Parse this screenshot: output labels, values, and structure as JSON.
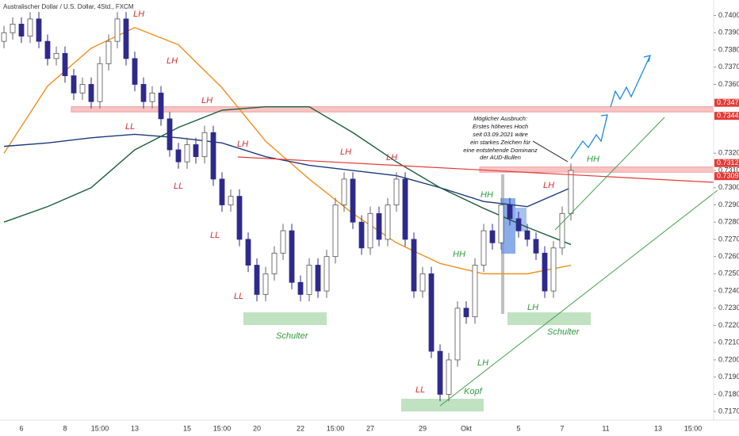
{
  "chart_data": {
    "type": "candlestick",
    "title": "Australischer Dollar / U.S. Dollar, 4Std., FXCM",
    "categories": [
      null,
      null,
      "6",
      null,
      null,
      null,
      null,
      "8",
      null,
      null,
      null,
      "15:00",
      null,
      null,
      null,
      "13",
      null,
      null,
      null,
      null,
      null,
      "15",
      null,
      null,
      null,
      "15:00",
      null,
      null,
      null,
      "20",
      null,
      null,
      null,
      null,
      "22",
      null,
      null,
      null,
      "15:00",
      null,
      null,
      null,
      "27",
      null,
      null,
      null,
      null,
      null,
      "29",
      null,
      null,
      null,
      null,
      "Okt",
      null,
      null,
      null,
      null,
      null,
      "5",
      null,
      null,
      null,
      null,
      "7",
      null,
      null,
      null,
      null,
      "11",
      null,
      null,
      null,
      null,
      null,
      "13",
      null,
      null,
      null,
      "15:00",
      null
    ],
    "open": [
      0.7385,
      0.739,
      0.7395,
      0.7388,
      0.7398,
      0.7385,
      0.7375,
      0.7378,
      0.7365,
      0.7355,
      0.736,
      0.735,
      0.7372,
      0.7385,
      0.7398,
      0.7375,
      0.736,
      0.735,
      0.7355,
      0.734,
      0.7322,
      0.7315,
      0.7325,
      0.7318,
      0.7332,
      0.7305,
      0.729,
      0.7295,
      0.727,
      0.7255,
      0.7238,
      0.725,
      0.7262,
      0.7275,
      0.7245,
      0.7238,
      0.7255,
      0.724,
      0.726,
      0.729,
      0.7305,
      0.728,
      0.7265,
      0.7285,
      0.727,
      0.729,
      0.7305,
      0.727,
      0.724,
      0.725,
      0.7205,
      0.718,
      0.72,
      0.723,
      0.7225,
      0.7255,
      0.7275,
      0.7268,
      0.729,
      0.7282,
      0.7275,
      0.727,
      0.7262,
      0.724,
      0.7265,
      0.7285,
      null,
      null,
      null,
      null,
      null,
      null,
      null,
      null,
      null,
      null,
      null,
      null,
      null,
      null,
      null
    ],
    "high": [
      0.7394,
      0.7399,
      0.7399,
      0.7402,
      0.7402,
      0.7389,
      0.7382,
      0.7382,
      0.7369,
      0.7364,
      0.7364,
      0.7376,
      0.7389,
      0.7402,
      0.7402,
      0.7379,
      0.7364,
      0.7359,
      0.7359,
      0.7344,
      0.7326,
      0.7329,
      0.7329,
      0.7336,
      0.7336,
      0.7309,
      0.7299,
      0.7299,
      0.7274,
      0.7259,
      0.7254,
      0.7266,
      0.7279,
      0.7279,
      0.7249,
      0.7259,
      0.7259,
      0.7264,
      0.7294,
      0.7309,
      0.7309,
      0.7284,
      0.7289,
      0.7289,
      0.7294,
      0.7309,
      0.7309,
      0.7274,
      0.7254,
      0.7254,
      0.7209,
      0.7204,
      0.7234,
      0.7234,
      0.7259,
      0.7279,
      0.7279,
      0.7294,
      0.7294,
      0.7286,
      0.7279,
      0.7274,
      0.7266,
      0.7269,
      0.7289,
      0.7314,
      null,
      null,
      null,
      null,
      null,
      null,
      null,
      null,
      null,
      null,
      null,
      null,
      null,
      null,
      null
    ],
    "low": [
      0.7381,
      0.7386,
      0.7384,
      0.7384,
      0.7381,
      0.7371,
      0.7371,
      0.7361,
      0.7351,
      0.7351,
      0.7346,
      0.7346,
      0.7368,
      0.7381,
      0.7371,
      0.7356,
      0.7346,
      0.7346,
      0.7336,
      0.7318,
      0.7311,
      0.7311,
      0.7314,
      0.7314,
      0.7301,
      0.7286,
      0.7286,
      0.7266,
      0.7251,
      0.7234,
      0.7234,
      0.7246,
      0.7258,
      0.7241,
      0.7234,
      0.7234,
      0.7236,
      0.7236,
      0.7256,
      0.7286,
      0.7276,
      0.7261,
      0.7261,
      0.7266,
      0.7266,
      0.7286,
      0.7266,
      0.7236,
      0.7236,
      0.7201,
      0.7176,
      0.7176,
      0.7196,
      0.7221,
      0.7221,
      0.7251,
      0.7264,
      0.7264,
      0.7278,
      0.7271,
      0.7266,
      0.7258,
      0.7236,
      0.7236,
      0.7261,
      0.7281,
      null,
      null,
      null,
      null,
      null,
      null,
      null,
      null,
      null,
      null,
      null,
      null,
      null,
      null,
      null
    ],
    "close": [
      0.739,
      0.7395,
      0.7388,
      0.7398,
      0.7385,
      0.7375,
      0.7378,
      0.7365,
      0.7355,
      0.736,
      0.735,
      0.7372,
      0.7385,
      0.7398,
      0.7375,
      0.736,
      0.735,
      0.7355,
      0.734,
      0.7322,
      0.7315,
      0.7325,
      0.7318,
      0.7332,
      0.7305,
      0.729,
      0.7295,
      0.727,
      0.7255,
      0.7238,
      0.725,
      0.7262,
      0.7275,
      0.7245,
      0.7238,
      0.7255,
      0.724,
      0.726,
      0.729,
      0.7305,
      0.728,
      0.7265,
      0.7285,
      0.727,
      0.729,
      0.7305,
      0.727,
      0.724,
      0.725,
      0.7205,
      0.718,
      0.72,
      0.723,
      0.7225,
      0.7255,
      0.7275,
      0.7268,
      0.729,
      0.7282,
      0.7275,
      0.727,
      0.7262,
      0.724,
      0.7265,
      0.7285,
      0.731,
      null,
      null,
      null,
      null,
      null,
      null,
      null,
      null,
      null,
      null,
      null,
      null,
      null,
      null,
      null
    ],
    "up_color": "#ffffff",
    "down_color": "#2e2a8c",
    "lines": [
      {
        "color": "#f0901e",
        "x": [
          0,
          5,
          10,
          15,
          20,
          25,
          30,
          35,
          40,
          45,
          50,
          55,
          60,
          65
        ],
        "values": [
          0.732,
          0.7359,
          0.7381,
          0.7393,
          0.7383,
          0.7358,
          0.7327,
          0.7305,
          0.7285,
          0.7268,
          0.7256,
          0.725,
          0.725,
          0.7255
        ]
      },
      {
        "color": "#1c3a7a",
        "x": [
          0,
          5,
          10,
          15,
          20,
          25,
          30,
          35,
          40,
          45,
          50,
          55,
          60,
          65
        ],
        "values": [
          0.7324,
          0.7326,
          0.7329,
          0.7331,
          0.7329,
          0.7326,
          0.7318,
          0.7313,
          0.731,
          0.7307,
          0.73,
          0.7292,
          0.7289,
          0.73
        ]
      },
      {
        "color": "#1b5e3a",
        "x": [
          0,
          5,
          10,
          15,
          20,
          25,
          30,
          35,
          40,
          45,
          50,
          55,
          60,
          65
        ],
        "values": [
          0.728,
          0.7289,
          0.73,
          0.7322,
          0.7335,
          0.7345,
          0.7347,
          0.7347,
          0.7332,
          0.7315,
          0.73,
          0.7288,
          0.7277,
          0.7267
        ]
      }
    ],
    "zones": [
      {
        "top": 0.7347,
        "bottom": 0.7344
      },
      {
        "top": 0.7312,
        "bottom": 0.7309
      }
    ],
    "ylim": [
      0.7165,
      0.7409
    ],
    "yticks": [
      {
        "value": 0.74,
        "label": "0.7400"
      },
      {
        "value": 0.739,
        "label": "0.7390"
      },
      {
        "value": 0.738,
        "label": "0.7380"
      },
      {
        "value": 0.737,
        "label": "0.7370"
      },
      {
        "value": 0.736,
        "label": "0.7360"
      },
      {
        "value": 0.732,
        "label": "0.7320"
      },
      {
        "value": 0.731,
        "label": "0.7310"
      },
      {
        "value": 0.73,
        "label": "0.7300"
      },
      {
        "value": 0.729,
        "label": "0.7290"
      },
      {
        "value": 0.728,
        "label": "0.7280"
      },
      {
        "value": 0.727,
        "label": "0.7270"
      },
      {
        "value": 0.726,
        "label": "0.7260"
      },
      {
        "value": 0.725,
        "label": "0.7250"
      },
      {
        "value": 0.724,
        "label": "0.7240"
      },
      {
        "value": 0.723,
        "label": "0.7230"
      },
      {
        "value": 0.722,
        "label": "0.7220"
      },
      {
        "value": 0.721,
        "label": "0.7210"
      },
      {
        "value": 0.72,
        "label": "0.7200"
      },
      {
        "value": 0.719,
        "label": "0.7190"
      },
      {
        "value": 0.718,
        "label": "0.7180"
      },
      {
        "value": 0.717,
        "label": "0.7170"
      }
    ],
    "grid": false,
    "annotations": [
      "LH",
      "LH",
      "LH",
      "LL",
      "LH",
      "LL",
      "LL",
      "LL",
      "LH",
      "LH",
      "LH",
      "LL",
      "HH",
      "HH",
      "HH",
      "LH",
      "LH",
      "Kopf",
      "Schulter",
      "Schulter",
      "Möglicher Ausbruch:",
      "Erstes höheres Hoch",
      "seit 03.09.2021 wäre",
      "ein starkes Zeichen für",
      "eine entstehende Dominanz",
      "der AUD-Bullen"
    ]
  }
}
